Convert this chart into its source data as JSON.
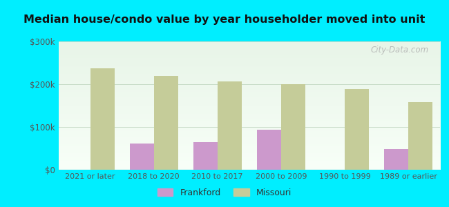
{
  "title": "Median house/condo value by year householder moved into unit",
  "categories": [
    "2021 or later",
    "2018 to 2020",
    "2010 to 2017",
    "2000 to 2009",
    "1990 to 1999",
    "1989 or earlier"
  ],
  "frankford_values": [
    0,
    62000,
    65000,
    93000,
    0,
    48000
  ],
  "missouri_values": [
    237000,
    220000,
    207000,
    200000,
    188000,
    158000
  ],
  "frankford_color": "#cc99cc",
  "missouri_color": "#c5cc99",
  "background_color": "#00eeff",
  "plot_bg_top": "#e8f5e8",
  "plot_bg_bottom": "#f8fff8",
  "ylim": [
    0,
    300000
  ],
  "yticks": [
    0,
    100000,
    200000,
    300000
  ],
  "ytick_labels": [
    "$0",
    "$100k",
    "$200k",
    "$300k"
  ],
  "bar_width": 0.38,
  "watermark": "City-Data.com",
  "legend_frankford": "Frankford",
  "legend_missouri": "Missouri",
  "tick_color": "#555555",
  "title_color": "#111111",
  "grid_color": "#c8ddc8"
}
